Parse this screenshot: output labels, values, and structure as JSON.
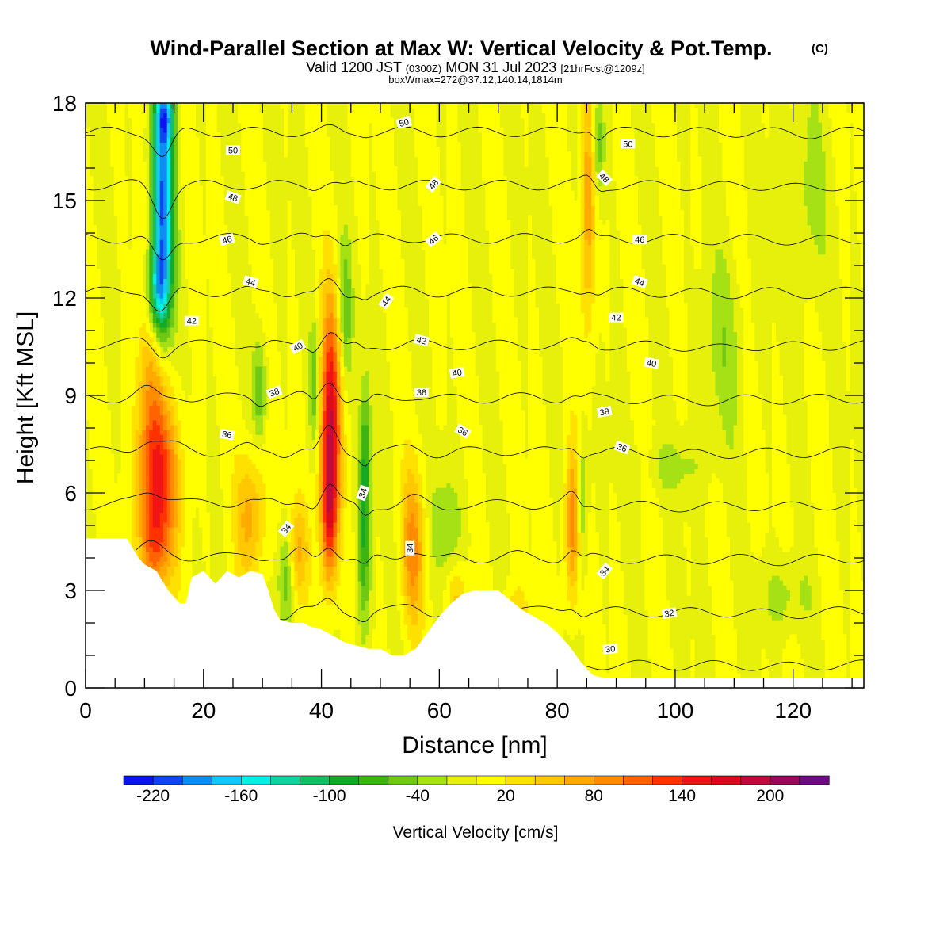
{
  "chart_data": {
    "type": "heatmap",
    "title": "Wind-Parallel Section at Max W: Vertical Velocity & Pot.Temp.",
    "title_mark": "(C)",
    "subtitle_main": "Valid 1200 JST",
    "subtitle_utc": "(0300Z)",
    "subtitle_date": "MON 31 Jul 2023",
    "subtitle_fcst": "[21hrFcst@1209z]",
    "subtitle2": "boxWmax=272@37.12,140.14,1814m",
    "xlabel": "Distance [nm]",
    "ylabel": "Height [Kft MSL]",
    "xlim": [
      0,
      132
    ],
    "ylim": [
      0,
      18
    ],
    "x_ticks": [
      "0",
      "20",
      "40",
      "60",
      "80",
      "100",
      "120"
    ],
    "y_ticks": [
      "0",
      "3",
      "6",
      "9",
      "12",
      "15",
      "18"
    ],
    "colorbar": {
      "title": "Vertical Velocity [cm/s]",
      "min": -240,
      "max": 240,
      "step": 20,
      "tick_labels": [
        "-220",
        "-160",
        "-100",
        "-40",
        "20",
        "80",
        "140",
        "200"
      ],
      "colors": [
        "#0a14f0",
        "#0f46f0",
        "#0f8cf0",
        "#14c8f5",
        "#00f0e6",
        "#14d2a0",
        "#14be64",
        "#14aa28",
        "#3cb414",
        "#6ec814",
        "#a5e114",
        "#e6f00a",
        "#ffff00",
        "#ffe100",
        "#ffc800",
        "#ffaa00",
        "#ff8c00",
        "#ff6400",
        "#ff3200",
        "#f01414",
        "#dc0a1e",
        "#be0a3c",
        "#960a5a",
        "#6e0a82"
      ]
    },
    "terrain_kft": [
      [
        0,
        4.6
      ],
      [
        7,
        4.6
      ],
      [
        8,
        4.3
      ],
      [
        9,
        4.0
      ],
      [
        10,
        3.8
      ],
      [
        11,
        3.7
      ],
      [
        12,
        3.6
      ],
      [
        14,
        3.0
      ],
      [
        16,
        2.6
      ],
      [
        17,
        2.6
      ],
      [
        18,
        3.4
      ],
      [
        20,
        3.6
      ],
      [
        22,
        3.2
      ],
      [
        24,
        3.6
      ],
      [
        26,
        3.4
      ],
      [
        28,
        3.6
      ],
      [
        30,
        3.5
      ],
      [
        31,
        3.0
      ],
      [
        32,
        2.4
      ],
      [
        33,
        2.1
      ],
      [
        35,
        2.0
      ],
      [
        37,
        2.0
      ],
      [
        38,
        1.9
      ],
      [
        40,
        1.8
      ],
      [
        42,
        1.6
      ],
      [
        44,
        1.4
      ],
      [
        46,
        1.3
      ],
      [
        48,
        1.2
      ],
      [
        50,
        1.2
      ],
      [
        52,
        1.0
      ],
      [
        54,
        1.0
      ],
      [
        56,
        1.2
      ],
      [
        58,
        1.7
      ],
      [
        60,
        2.2
      ],
      [
        62,
        2.6
      ],
      [
        64,
        2.9
      ],
      [
        66,
        3.0
      ],
      [
        70,
        3.0
      ],
      [
        72,
        2.7
      ],
      [
        74,
        2.4
      ],
      [
        76,
        2.2
      ],
      [
        78,
        2.0
      ],
      [
        80,
        1.7
      ],
      [
        82,
        1.3
      ],
      [
        84,
        0.8
      ],
      [
        86,
        0.4
      ],
      [
        88,
        0.3
      ],
      [
        95,
        0.3
      ],
      [
        132,
        0.3
      ]
    ],
    "updrafts": [
      {
        "x": 12.5,
        "y": 6.3,
        "sx": 2.4,
        "sy": 1.9,
        "v": 125
      },
      {
        "x": 11.0,
        "y": 9.5,
        "sx": 1.6,
        "sy": 2.8,
        "v": 60
      },
      {
        "x": 11.5,
        "y": 4.2,
        "sx": 1.5,
        "sy": 0.9,
        "v": 60
      },
      {
        "x": 28.0,
        "y": 5.3,
        "sx": 1.8,
        "sy": 1.4,
        "v": 70
      },
      {
        "x": 36.0,
        "y": 4.2,
        "sx": 1.3,
        "sy": 1.1,
        "v": 65
      },
      {
        "x": 41.5,
        "y": 8.0,
        "sx": 1.2,
        "sy": 2.6,
        "v": 175
      },
      {
        "x": 41.2,
        "y": 5.2,
        "sx": 0.9,
        "sy": 1.4,
        "v": 90
      },
      {
        "x": 55.5,
        "y": 4.3,
        "sx": 1.4,
        "sy": 1.7,
        "v": 85
      },
      {
        "x": 82.5,
        "y": 5.0,
        "sx": 0.9,
        "sy": 1.7,
        "v": 95
      },
      {
        "x": 85.2,
        "y": 15.0,
        "sx": 0.9,
        "sy": 2.8,
        "v": 80
      },
      {
        "x": 63.0,
        "y": 2.8,
        "sx": 1.2,
        "sy": 0.7,
        "v": 50
      },
      {
        "x": 73.0,
        "y": 2.2,
        "sx": 1.6,
        "sy": 0.7,
        "v": 40
      }
    ],
    "downdrafts": [
      {
        "x": 13.0,
        "y": 15.0,
        "sx": 1.3,
        "sy": 2.6,
        "v": -200
      },
      {
        "x": 12.2,
        "y": 12.2,
        "sx": 1.3,
        "sy": 1.0,
        "v": -120
      },
      {
        "x": 13.5,
        "y": 17.6,
        "sx": 1.1,
        "sy": 0.6,
        "v": -100
      },
      {
        "x": 47.2,
        "y": 4.6,
        "sx": 0.8,
        "sy": 2.0,
        "v": -75
      },
      {
        "x": 47.5,
        "y": 7.5,
        "sx": 0.6,
        "sy": 1.5,
        "v": -55
      },
      {
        "x": 34.0,
        "y": 3.4,
        "sx": 1.0,
        "sy": 1.1,
        "v": -60
      },
      {
        "x": 44.0,
        "y": 11.6,
        "sx": 0.8,
        "sy": 1.5,
        "v": -60
      },
      {
        "x": 38.8,
        "y": 9.3,
        "sx": 0.6,
        "sy": 1.3,
        "v": -55
      },
      {
        "x": 29.5,
        "y": 9.2,
        "sx": 0.8,
        "sy": 1.1,
        "v": -55
      },
      {
        "x": 84.3,
        "y": 5.8,
        "sx": 0.6,
        "sy": 1.6,
        "v": -50
      },
      {
        "x": 87.0,
        "y": 16.8,
        "sx": 0.7,
        "sy": 1.2,
        "v": -60
      },
      {
        "x": 61.0,
        "y": 5.0,
        "sx": 2.0,
        "sy": 1.2,
        "v": -35
      },
      {
        "x": 108.0,
        "y": 10.5,
        "sx": 2.5,
        "sy": 2.0,
        "v": -30
      },
      {
        "x": 122.0,
        "y": 15.0,
        "sx": 2.5,
        "sy": 2.2,
        "v": -30
      },
      {
        "x": 118.0,
        "y": 2.8,
        "sx": 3.0,
        "sy": 0.8,
        "v": -30
      },
      {
        "x": 100.0,
        "y": 6.8,
        "sx": 4.0,
        "sy": 0.6,
        "v": -25
      }
    ],
    "theta_contours": [
      30,
      32,
      34,
      36,
      38,
      40,
      42,
      44,
      46,
      48,
      50
    ],
    "contour_labels": [
      {
        "text": "50",
        "x": 25,
        "y": 16.55,
        "angle": 0
      },
      {
        "text": "50",
        "x": 54,
        "y": 17.4,
        "angle": -15
      },
      {
        "text": "50",
        "x": 92,
        "y": 16.75,
        "angle": 0
      },
      {
        "text": "48",
        "x": 25,
        "y": 15.1,
        "angle": 20
      },
      {
        "text": "48",
        "x": 59,
        "y": 15.5,
        "angle": -50
      },
      {
        "text": "48",
        "x": 88,
        "y": 15.7,
        "angle": 45
      },
      {
        "text": "46",
        "x": 24,
        "y": 13.8,
        "angle": -15
      },
      {
        "text": "46",
        "x": 59,
        "y": 13.8,
        "angle": -40
      },
      {
        "text": "46",
        "x": 94,
        "y": 13.8,
        "angle": 0
      },
      {
        "text": "44",
        "x": 28,
        "y": 12.5,
        "angle": 15
      },
      {
        "text": "44",
        "x": 51,
        "y": 11.9,
        "angle": -55
      },
      {
        "text": "44",
        "x": 94,
        "y": 12.5,
        "angle": 20
      },
      {
        "text": "42",
        "x": 18,
        "y": 11.3,
        "angle": 0
      },
      {
        "text": "42",
        "x": 57,
        "y": 10.7,
        "angle": 15
      },
      {
        "text": "42",
        "x": 90,
        "y": 11.4,
        "angle": 0
      },
      {
        "text": "40",
        "x": 36,
        "y": 10.5,
        "angle": -30
      },
      {
        "text": "40",
        "x": 63,
        "y": 9.7,
        "angle": -10
      },
      {
        "text": "40",
        "x": 96,
        "y": 10.0,
        "angle": 10
      },
      {
        "text": "38",
        "x": 32,
        "y": 9.1,
        "angle": -20
      },
      {
        "text": "38",
        "x": 57,
        "y": 9.1,
        "angle": 0
      },
      {
        "text": "38",
        "x": 88,
        "y": 8.5,
        "angle": -10
      },
      {
        "text": "36",
        "x": 24,
        "y": 7.8,
        "angle": 10
      },
      {
        "text": "36",
        "x": 64,
        "y": 7.9,
        "angle": 30
      },
      {
        "text": "36",
        "x": 91,
        "y": 7.4,
        "angle": 20
      },
      {
        "text": "34",
        "x": 34,
        "y": 4.9,
        "angle": -50
      },
      {
        "text": "34",
        "x": 47,
        "y": 6.0,
        "angle": -70
      },
      {
        "text": "34",
        "x": 55,
        "y": 4.3,
        "angle": -90
      },
      {
        "text": "34",
        "x": 88,
        "y": 3.6,
        "angle": -50
      },
      {
        "text": "32",
        "x": 99,
        "y": 2.3,
        "angle": -10
      },
      {
        "text": "30",
        "x": 89,
        "y": 1.2,
        "angle": -5
      }
    ]
  }
}
